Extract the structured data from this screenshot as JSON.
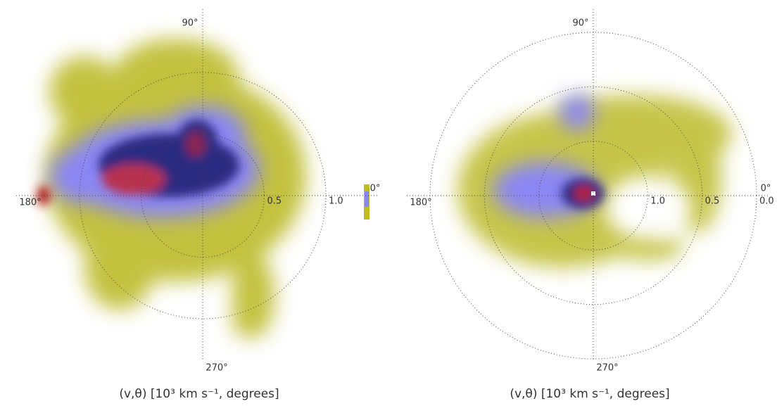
{
  "chart_data": [
    {
      "type": "polar-density",
      "xlabel": "(v,θ) [10³ km s⁻¹, degrees]",
      "rlim": [
        0,
        1
      ],
      "rticks": [
        0.5,
        {
          "value": 1,
          "label": "1.0"
        }
      ],
      "thetaticks": [
        {
          "value": 90,
          "label": "90°"
        },
        {
          "value": 180,
          "label": "180°"
        },
        {
          "value": 270,
          "label": "270°"
        },
        {
          "value": 0,
          "label": "0°"
        }
      ]
    },
    {
      "type": "polar-density",
      "xlabel": "(v,θ) [10³ km s⁻¹, degrees]",
      "rlim": [
        1.5,
        0
      ],
      "rticks": [
        {
          "value": 1,
          "label": "1.0"
        },
        0.5,
        {
          "value": 0,
          "label": "0.0"
        }
      ],
      "thetaticks": [
        {
          "value": 90,
          "label": "90°"
        },
        {
          "value": 180,
          "label": "180°"
        },
        {
          "value": 270,
          "label": "270°"
        },
        {
          "value": 0,
          "label": "0°"
        }
      ]
    }
  ]
}
